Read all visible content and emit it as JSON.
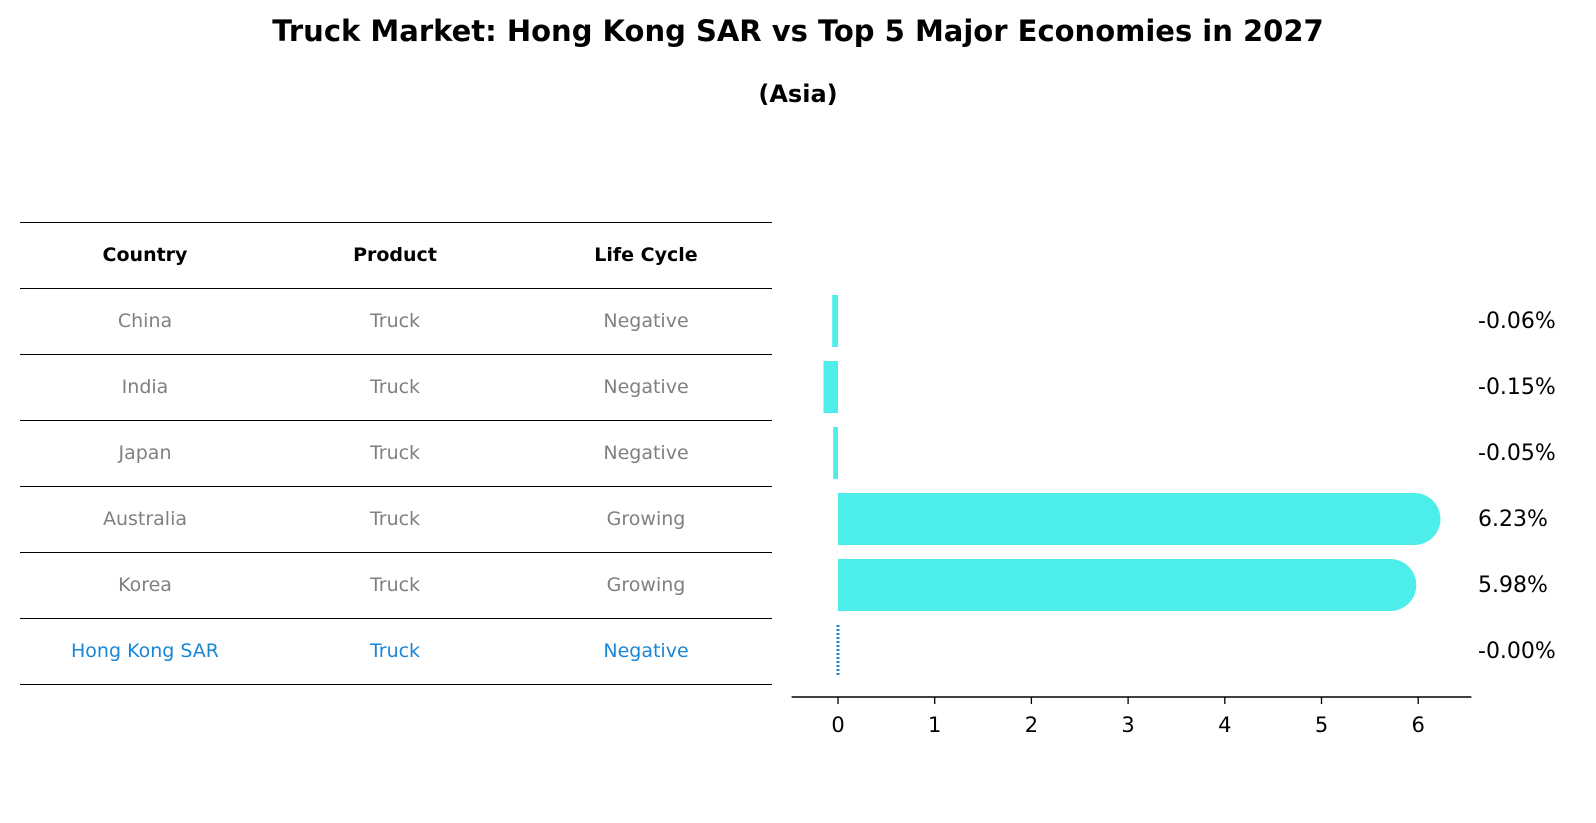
{
  "title": "Truck Market: Hong Kong SAR vs Top 5 Major Economies in 2027",
  "subtitle": "(Asia)",
  "colors": {
    "bar": "#4DEDEA",
    "highlight": "#1A86D6",
    "muted_text": "#808080",
    "axis": "#000000"
  },
  "table": {
    "headers": [
      "Country",
      "Product",
      "Life Cycle"
    ],
    "rows": [
      {
        "country": "China",
        "product": "Truck",
        "life_cycle": "Negative"
      },
      {
        "country": "India",
        "product": "Truck",
        "life_cycle": "Negative"
      },
      {
        "country": "Japan",
        "product": "Truck",
        "life_cycle": "Negative"
      },
      {
        "country": "Australia",
        "product": "Truck",
        "life_cycle": "Growing"
      },
      {
        "country": "Korea",
        "product": "Truck",
        "life_cycle": "Growing"
      },
      {
        "country": "Hong Kong SAR",
        "product": "Truck",
        "life_cycle": "Negative",
        "highlight": true
      }
    ]
  },
  "chart_data": {
    "type": "bar",
    "orientation": "horizontal",
    "categories": [
      "China",
      "India",
      "Japan",
      "Australia",
      "Korea",
      "Hong Kong SAR"
    ],
    "values": [
      -0.06,
      -0.15,
      -0.05,
      6.23,
      5.98,
      -0.0
    ],
    "value_labels": [
      "-0.06%",
      "-0.15%",
      "-0.05%",
      "6.23%",
      "5.98%",
      "-0.00%"
    ],
    "xlim": [
      -0.48,
      6.55
    ],
    "xticks": [
      0,
      1,
      2,
      3,
      4,
      5,
      6
    ],
    "xlabel": "",
    "ylabel": "",
    "grid": false,
    "legend": "none"
  }
}
